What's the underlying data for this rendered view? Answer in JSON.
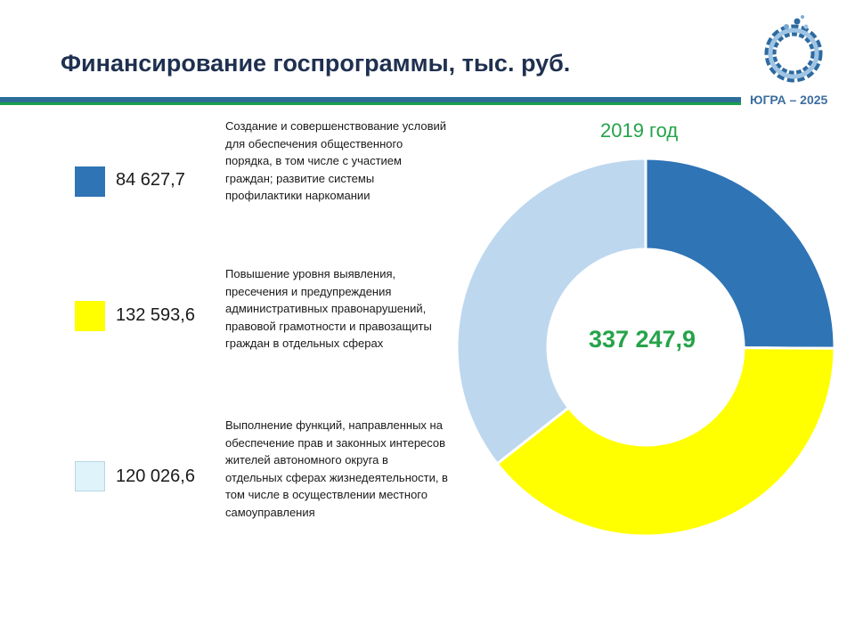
{
  "header": {
    "title": "Финансирование госпрограммы, тыс. руб.",
    "brand": "ЮГРА – 2025"
  },
  "legend": [
    {
      "value_label": "84 627,7",
      "description": "Создание и совершенствование условий для обеспечения общественного порядка, в том числе с участием граждан; развитие системы профилактики наркомании"
    },
    {
      "value_label": "132 593,6",
      "description": "Повышение уровня выявления, пресечения и предупреждения административных правонарушений, правовой грамотности и правозащиты граждан в отдельных сферах"
    },
    {
      "value_label": "120 026,6",
      "description": "Выполнение функций, направленных на обеспечение прав и законных интересов жителей автономного округа в отдельных сферах жизнедеятельности, в том числе в осуществлении местного самоуправления"
    }
  ],
  "chart_data": {
    "type": "pie",
    "variant": "donut",
    "title": "2019 год",
    "center_label": "337 247,9",
    "categories": [
      "84 627,7",
      "132 593,6",
      "120 026,6"
    ],
    "values": [
      84627.7,
      132593.6,
      120026.6
    ],
    "colors": [
      "#2f74b5",
      "#ffff00",
      "#bdd7ee"
    ],
    "legend_position": "left"
  },
  "colors": {
    "title": "#1f3050",
    "accent_blue": "#2c6e98",
    "accent_green": "#18a04a",
    "year_and_total": "#25a34a",
    "swatch_1": "#2f74b5",
    "swatch_2": "#ffff00",
    "swatch_3": "#dff3fb"
  }
}
